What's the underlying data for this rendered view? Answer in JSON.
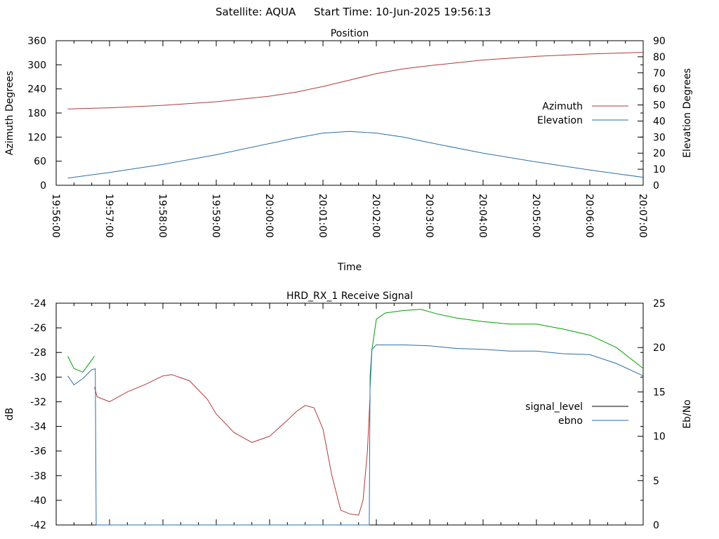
{
  "header": {
    "satellite": "Satellite: AQUA",
    "start_time": "Start Time: 10-Jun-2025 19:56:13"
  },
  "chart_data": [
    {
      "id": "position",
      "type": "line",
      "title": "Position",
      "xlabel": "Time",
      "ylabel": "Azimuth Degrees",
      "y2label": "Elevation Degrees",
      "x_range": [
        "19:56:00",
        "20:07:00"
      ],
      "x_ticks": [
        "19:56:00",
        "19:57:00",
        "19:58:00",
        "19:59:00",
        "20:00:00",
        "20:01:00",
        "20:02:00",
        "20:03:00",
        "20:04:00",
        "20:05:00",
        "20:06:00",
        "20:07:00"
      ],
      "ylim": [
        0,
        360
      ],
      "y_ticks": [
        "0",
        "60",
        "120",
        "180",
        "240",
        "300",
        "360"
      ],
      "y2lim": [
        0,
        90
      ],
      "y2_ticks": [
        "0",
        "10",
        "20",
        "30",
        "40",
        "50",
        "60",
        "70",
        "80",
        "90"
      ],
      "legend_position": "right",
      "series": [
        {
          "name": "Azimuth",
          "axis": "y",
          "color": "#b03a3a",
          "x": [
            "19:56:13",
            "19:57:00",
            "19:58:00",
            "19:59:00",
            "20:00:00",
            "20:00:30",
            "20:01:00",
            "20:01:30",
            "20:02:00",
            "20:02:30",
            "20:03:00",
            "20:04:00",
            "20:05:00",
            "20:06:00",
            "20:07:00"
          ],
          "y": [
            190,
            193,
            199,
            208,
            222,
            232,
            246,
            262,
            278,
            290,
            298,
            312,
            321,
            327,
            331
          ]
        },
        {
          "name": "Elevation",
          "axis": "y2",
          "color": "#2a6ea8",
          "x": [
            "19:56:13",
            "19:57:00",
            "19:58:00",
            "19:59:00",
            "20:00:00",
            "20:00:30",
            "20:01:00",
            "20:01:30",
            "20:02:00",
            "20:02:30",
            "20:03:00",
            "20:04:00",
            "20:05:00",
            "20:06:00",
            "20:07:00"
          ],
          "y": [
            4.5,
            8,
            13,
            19,
            26,
            29.5,
            32.5,
            33.5,
            32.5,
            30,
            26.5,
            20,
            14.5,
            9.5,
            5
          ]
        }
      ]
    },
    {
      "id": "signal",
      "type": "line",
      "title": "HRD_RX_1 Receive Signal",
      "ylabel": "dB",
      "y2label": "Eb/No",
      "x_range": [
        "19:56:00",
        "20:07:00"
      ],
      "ylim": [
        -42,
        -24
      ],
      "y_ticks": [
        "-42",
        "-40",
        "-38",
        "-36",
        "-34",
        "-32",
        "-30",
        "-28",
        "-26",
        "-24"
      ],
      "y2lim": [
        0,
        25
      ],
      "y2_ticks": [
        "0",
        "5",
        "10",
        "15",
        "20",
        "25"
      ],
      "legend_position": "right",
      "legend": [
        {
          "name": "signal_level",
          "color": "#000000"
        },
        {
          "name": "ebno",
          "color": "#2a6ea8"
        }
      ],
      "series": [
        {
          "name": "signal_level (lock)",
          "axis": "y",
          "color": "#00a000",
          "x": [
            "19:56:13",
            "19:56:20",
            "19:56:30",
            "19:56:40",
            "19:56:43"
          ],
          "y": [
            -28.3,
            -29.3,
            -29.6,
            -28.6,
            -28.3
          ]
        },
        {
          "name": "signal_level (lock)",
          "axis": "y",
          "color": "#00a000",
          "x": [
            "20:01:53",
            "20:01:55",
            "20:02:00",
            "20:02:10",
            "20:02:30",
            "20:02:50",
            "20:03:10",
            "20:03:30",
            "20:04:00",
            "20:04:30",
            "20:05:00",
            "20:05:30",
            "20:06:00",
            "20:06:30",
            "20:07:00"
          ],
          "y": [
            -30.8,
            -27.8,
            -25.3,
            -24.8,
            -24.6,
            -24.5,
            -24.9,
            -25.2,
            -25.5,
            -25.7,
            -25.7,
            -26.1,
            -26.6,
            -27.6,
            -29.3
          ]
        },
        {
          "name": "signal_level",
          "axis": "y",
          "color": "#b03a3a",
          "x": [
            "19:56:43",
            "19:56:46",
            "19:57:00",
            "19:57:20",
            "19:57:40",
            "19:58:00",
            "19:58:10",
            "19:58:30",
            "19:58:50",
            "19:59:00",
            "19:59:20",
            "19:59:40",
            "20:00:00",
            "20:00:20",
            "20:00:30",
            "20:00:40",
            "20:00:50",
            "20:01:00",
            "20:01:10",
            "20:01:20",
            "20:01:30",
            "20:01:40",
            "20:01:45",
            "20:01:50",
            "20:01:53"
          ],
          "y": [
            -30.8,
            -31.6,
            -32.0,
            -31.2,
            -30.6,
            -29.9,
            -29.8,
            -30.3,
            -31.8,
            -33.0,
            -34.5,
            -35.3,
            -34.8,
            -33.5,
            -32.8,
            -32.3,
            -32.5,
            -34.2,
            -38.0,
            -40.8,
            -41.1,
            -41.2,
            -40.0,
            -36.0,
            -31.5
          ]
        },
        {
          "name": "ebno",
          "axis": "y2",
          "color": "#2a6ea8",
          "x": [
            "19:56:13",
            "19:56:20",
            "19:56:30",
            "19:56:40",
            "19:56:44",
            "19:56:45",
            "20:01:52",
            "20:01:53",
            "20:01:55",
            "20:02:00",
            "20:02:10",
            "20:02:30",
            "20:03:00",
            "20:03:30",
            "20:04:00",
            "20:04:30",
            "20:05:00",
            "20:05:30",
            "20:06:00",
            "20:06:30",
            "20:07:00"
          ],
          "y": [
            16.8,
            15.8,
            16.5,
            17.5,
            17.6,
            0,
            0,
            16.8,
            19.8,
            20.3,
            20.3,
            20.3,
            20.2,
            19.9,
            19.8,
            19.6,
            19.6,
            19.3,
            19.2,
            18.2,
            16.8
          ]
        }
      ]
    }
  ]
}
